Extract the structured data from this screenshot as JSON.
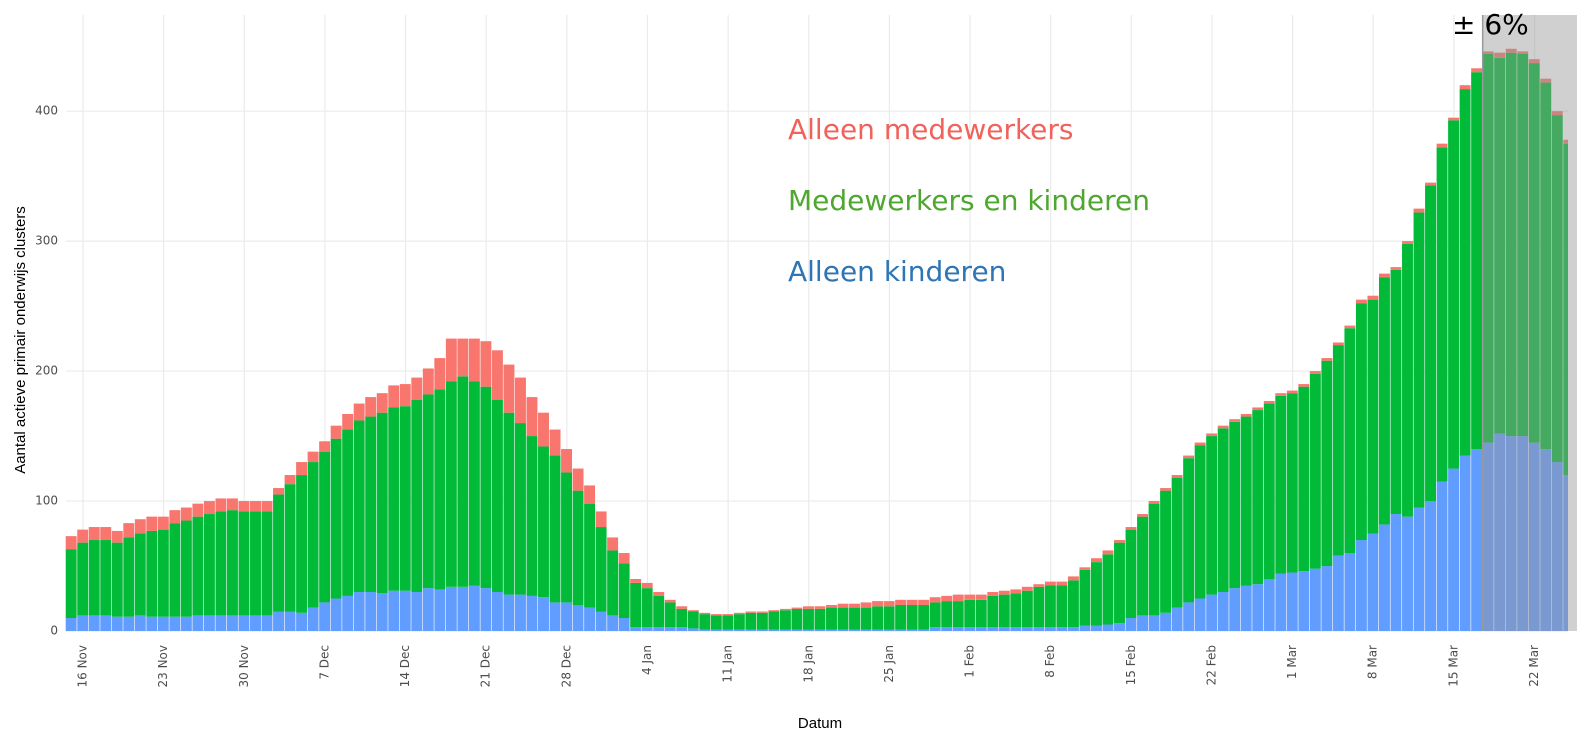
{
  "chart_data": {
    "type": "stacked-bar",
    "x_label": "Datum",
    "y_label": "Aantal actieve primair onderwijs clusters",
    "annotation": "± 6%",
    "shade_start_index": 123,
    "ylim": [
      0,
      474
    ],
    "yticks": [
      0,
      100,
      200,
      300,
      400
    ],
    "grid": true,
    "categories": [
      null,
      "16 Nov",
      null,
      null,
      null,
      null,
      null,
      null,
      "23 Nov",
      null,
      null,
      null,
      null,
      null,
      null,
      "30 Nov",
      null,
      null,
      null,
      null,
      null,
      null,
      "7 Dec",
      null,
      null,
      null,
      null,
      null,
      null,
      "14 Dec",
      null,
      null,
      null,
      null,
      null,
      null,
      "21 Dec",
      null,
      null,
      null,
      null,
      null,
      null,
      "28 Dec",
      null,
      null,
      null,
      null,
      null,
      null,
      "4 Jan",
      null,
      null,
      null,
      null,
      null,
      null,
      "11 Jan",
      null,
      null,
      null,
      null,
      null,
      null,
      "18 Jan",
      null,
      null,
      null,
      null,
      null,
      null,
      "25 Jan",
      null,
      null,
      null,
      null,
      null,
      null,
      "1 Feb",
      null,
      null,
      null,
      null,
      null,
      null,
      "8 Feb",
      null,
      null,
      null,
      null,
      null,
      null,
      "15 Feb",
      null,
      null,
      null,
      null,
      null,
      null,
      "22 Feb",
      null,
      null,
      null,
      null,
      null,
      null,
      "1 Mar",
      null,
      null,
      null,
      null,
      null,
      null,
      "8 Mar",
      null,
      null,
      null,
      null,
      null,
      null,
      "15 Mar",
      null,
      null,
      null,
      null,
      null,
      null,
      "22 Mar",
      null,
      null,
      null
    ],
    "series": [
      {
        "name": "Alleen kinderen",
        "color": "#619cff",
        "label_color": "#2e75b6",
        "values": [
          10,
          12,
          12,
          12,
          11,
          11,
          12,
          11,
          11,
          11,
          11,
          12,
          12,
          12,
          12,
          12,
          12,
          12,
          15,
          15,
          14,
          18,
          22,
          25,
          27,
          30,
          30,
          29,
          31,
          31,
          30,
          33,
          32,
          34,
          34,
          35,
          33,
          30,
          28,
          28,
          27,
          26,
          22,
          22,
          20,
          18,
          15,
          12,
          10,
          3,
          3,
          3,
          3,
          3,
          2,
          1,
          1,
          1,
          1,
          1,
          1,
          1,
          1,
          1,
          1,
          1,
          1,
          1,
          1,
          1,
          1,
          1,
          1,
          1,
          1,
          3,
          3,
          3,
          3,
          3,
          3,
          3,
          3,
          3,
          3,
          3,
          3,
          3,
          4,
          4,
          5,
          6,
          10,
          12,
          12,
          14,
          18,
          22,
          25,
          28,
          30,
          33,
          35,
          36,
          40,
          44,
          45,
          46,
          48,
          50,
          58,
          60,
          70,
          75,
          82,
          90,
          88,
          95,
          100,
          115,
          125,
          135,
          140,
          145,
          152,
          150,
          150,
          145,
          140,
          130,
          120
        ]
      },
      {
        "name": "Medewerkers en kinderen",
        "color": "#00ba38",
        "label_color": "#4ea72e",
        "values": [
          53,
          56,
          58,
          58,
          57,
          61,
          63,
          66,
          67,
          72,
          74,
          76,
          78,
          80,
          81,
          80,
          80,
          80,
          90,
          98,
          106,
          112,
          116,
          123,
          128,
          132,
          135,
          139,
          141,
          142,
          148,
          149,
          154,
          158,
          162,
          157,
          155,
          148,
          140,
          132,
          123,
          116,
          113,
          100,
          88,
          80,
          65,
          50,
          42,
          34,
          30,
          24,
          19,
          14,
          13,
          12,
          11,
          11,
          12,
          13,
          13,
          14,
          15,
          16,
          16,
          16,
          17,
          17,
          17,
          17,
          18,
          18,
          19,
          19,
          19,
          19,
          20,
          20,
          21,
          21,
          24,
          25,
          26,
          28,
          31,
          32,
          32,
          36,
          43,
          49,
          54,
          62,
          68,
          76,
          86,
          94,
          100,
          111,
          118,
          122,
          126,
          128,
          130,
          134,
          135,
          137,
          138,
          142,
          150,
          158,
          162,
          173,
          182,
          180,
          190,
          188,
          210,
          227,
          243,
          257,
          268,
          282,
          290,
          299,
          289,
          295,
          294,
          292,
          282,
          267,
          255
        ]
      },
      {
        "name": "Alleen medewerkers",
        "color": "#f8766d",
        "label_color": "#f0625a",
        "values": [
          10,
          10,
          10,
          10,
          9,
          11,
          11,
          11,
          10,
          10,
          10,
          10,
          10,
          10,
          9,
          8,
          8,
          8,
          5,
          7,
          10,
          8,
          8,
          10,
          12,
          13,
          15,
          15,
          17,
          17,
          17,
          20,
          24,
          33,
          29,
          33,
          35,
          38,
          37,
          35,
          30,
          26,
          20,
          18,
          17,
          14,
          12,
          10,
          8,
          3,
          4,
          3,
          2,
          2,
          1,
          1,
          1,
          1,
          1,
          1,
          1,
          1,
          1,
          1,
          2,
          2,
          2,
          3,
          3,
          4,
          4,
          4,
          4,
          4,
          4,
          4,
          4,
          5,
          4,
          4,
          3,
          3,
          3,
          3,
          2,
          3,
          3,
          3,
          2,
          3,
          3,
          2,
          2,
          2,
          2,
          2,
          2,
          2,
          2,
          2,
          2,
          2,
          2,
          2,
          2,
          2,
          2,
          2,
          2,
          2,
          2,
          2,
          3,
          3,
          3,
          2,
          2,
          3,
          2,
          3,
          2,
          3,
          3,
          2,
          4,
          3,
          2,
          3,
          3,
          3,
          3
        ]
      }
    ]
  }
}
